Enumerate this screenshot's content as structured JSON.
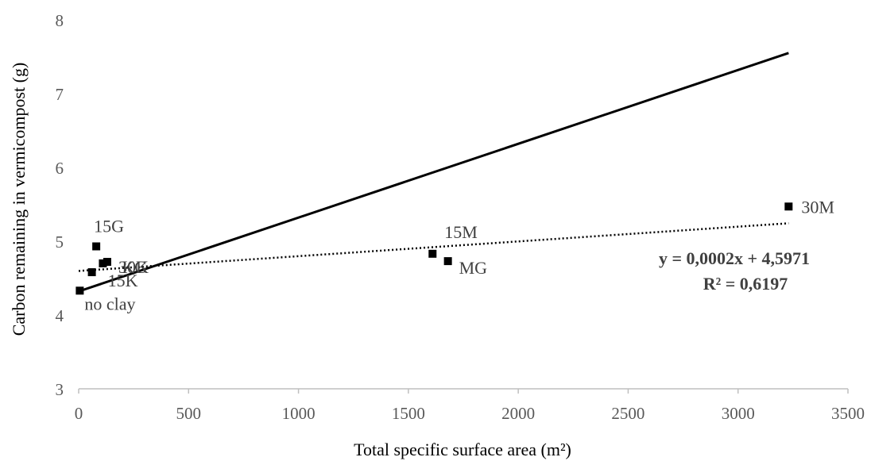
{
  "chart_data": {
    "type": "scatter",
    "xlabel": "Total specific surface area (m²)",
    "ylabel": "Carbon remaining in vermicompost (g)",
    "xlim": [
      0,
      3500
    ],
    "ylim": [
      3,
      8
    ],
    "x_ticks": [
      0,
      500,
      1000,
      1500,
      2000,
      2500,
      3000,
      3500
    ],
    "y_ticks": [
      3,
      4,
      5,
      6,
      7,
      8
    ],
    "grid": false,
    "points": [
      {
        "label": "no clay",
        "x": 5,
        "y": 4.33
      },
      {
        "label": "15K",
        "x": 60,
        "y": 4.58
      },
      {
        "label": "15G",
        "x": 80,
        "y": 4.93
      },
      {
        "label": "KG",
        "x": 110,
        "y": 4.7
      },
      {
        "label": "30K",
        "x": 130,
        "y": 4.72
      },
      {
        "label": "15M",
        "x": 1610,
        "y": 4.83
      },
      {
        "label": "MG",
        "x": 1680,
        "y": 4.73
      },
      {
        "label": "30M",
        "x": 3230,
        "y": 5.47
      }
    ],
    "lines": [
      {
        "style": "solid",
        "x": [
          0,
          3230
        ],
        "y": [
          4.32,
          7.55
        ]
      },
      {
        "style": "dotted",
        "x": [
          0,
          3230
        ],
        "y": [
          4.5971,
          5.2431
        ]
      }
    ],
    "annotations": [
      "y = 0,0002x + 4,5971",
      "R² = 0,6197"
    ]
  }
}
